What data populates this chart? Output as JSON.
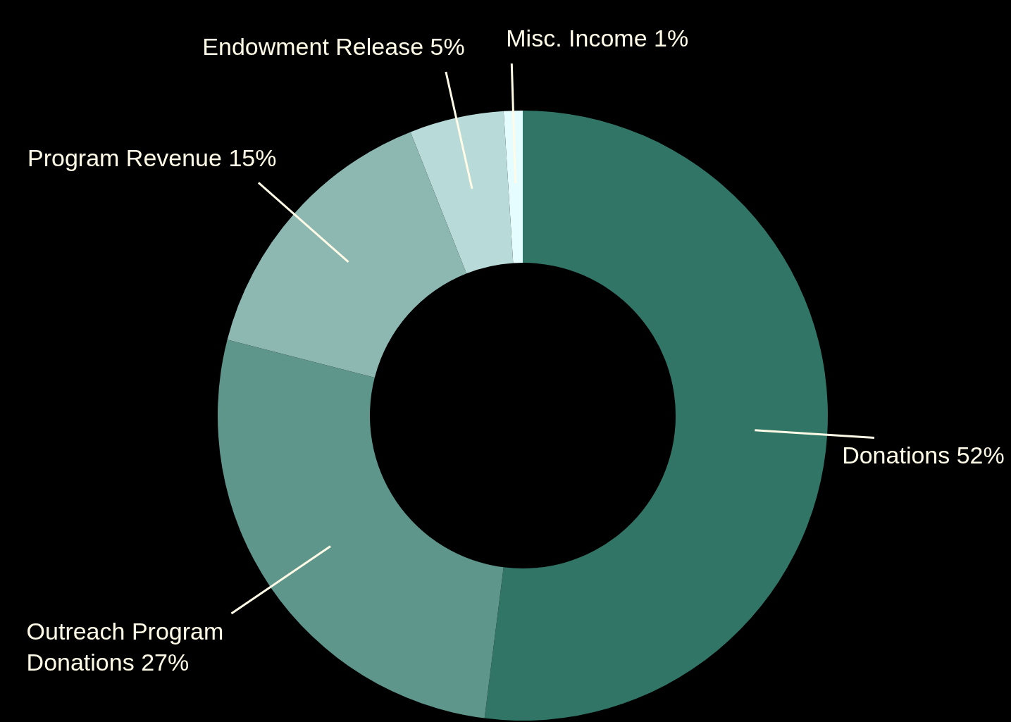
{
  "chart_data": {
    "type": "donut",
    "categories": [
      "Donations",
      "Outreach Program Donations",
      "Program Revenue",
      "Endowment Release",
      "Misc. Income"
    ],
    "values": [
      52,
      27,
      15,
      5,
      1
    ],
    "value_labels": [
      "52%",
      "27%",
      "15%",
      "5%",
      "1%"
    ],
    "colors": [
      "#317566",
      "#5e968b",
      "#8db8b2",
      "#b8dbd9",
      "#e6fdff"
    ]
  }
}
